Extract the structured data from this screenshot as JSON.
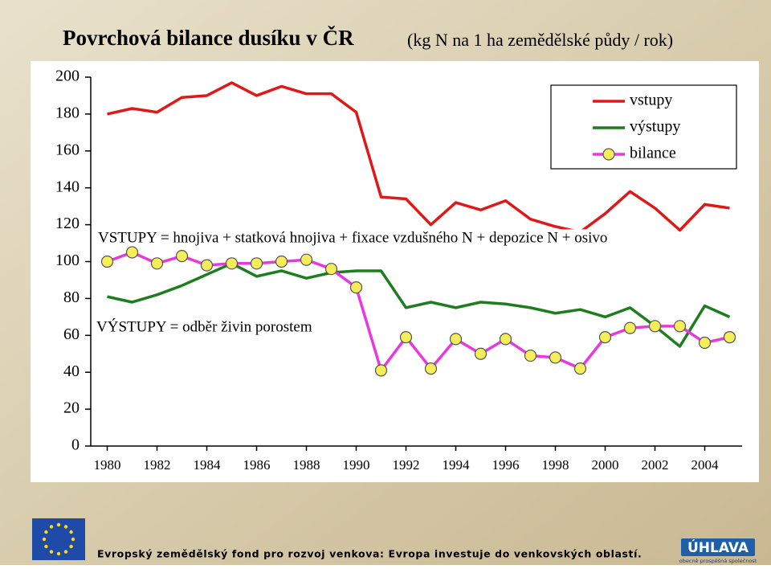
{
  "chart_data": {
    "type": "line",
    "title": "Povrchová bilance dusíku v ČR",
    "subtitle": "(kg N na 1 ha zemědělské půdy / rok)",
    "x": [
      1980,
      1981,
      1982,
      1983,
      1984,
      1985,
      1986,
      1987,
      1988,
      1989,
      1990,
      1991,
      1992,
      1993,
      1994,
      1995,
      1996,
      1997,
      1998,
      1999,
      2000,
      2001,
      2002,
      2003,
      2004,
      2005
    ],
    "series": [
      {
        "name": "vstupy",
        "color": "#e01818",
        "values": [
          180,
          183,
          181,
          189,
          190,
          197,
          190,
          195,
          191,
          191,
          181,
          135,
          134,
          120,
          132,
          128,
          133,
          123,
          119,
          116,
          126,
          138,
          129,
          117,
          131,
          129
        ]
      },
      {
        "name": "výstupy",
        "color": "#1e7d1e",
        "values": [
          81,
          78,
          82,
          87,
          93,
          99,
          92,
          95,
          91,
          94,
          95,
          95,
          75,
          78,
          75,
          78,
          77,
          75,
          72,
          74,
          70,
          75,
          65,
          54,
          76,
          70
        ]
      },
      {
        "name": "bilance",
        "color": "#e838e0",
        "marker": "circle",
        "marker_color": "#f5ee5a",
        "values": [
          100,
          105,
          99,
          103,
          98,
          99,
          99,
          100,
          101,
          96,
          86,
          41,
          59,
          42,
          58,
          50,
          58,
          49,
          48,
          42,
          59,
          64,
          65,
          65,
          56,
          59
        ]
      }
    ],
    "xlim": [
      1979.5,
      2005.5
    ],
    "xticks": [
      1980,
      1982,
      1984,
      1986,
      1988,
      1990,
      1992,
      1994,
      1996,
      1998,
      2000,
      2002,
      2004
    ],
    "ylim": [
      0,
      200
    ],
    "yticks": [
      0,
      20,
      40,
      60,
      80,
      100,
      120,
      140,
      160,
      180,
      200
    ],
    "grid": false,
    "legend": "upper right",
    "annotations": [
      "VSTUPY = hnojiva + statková hnojiva + fixace vzdušného N + depozice N + osivo",
      "VÝSTUPY = odběr živin porostem"
    ]
  },
  "footer": {
    "text": "Evropský zemědělský fond pro rozvoj venkova: Evropa investuje do venkovských oblastí.",
    "logo_title": "ÚHLAVA",
    "logo_subtitle": "obecně prospěšná společnost"
  }
}
